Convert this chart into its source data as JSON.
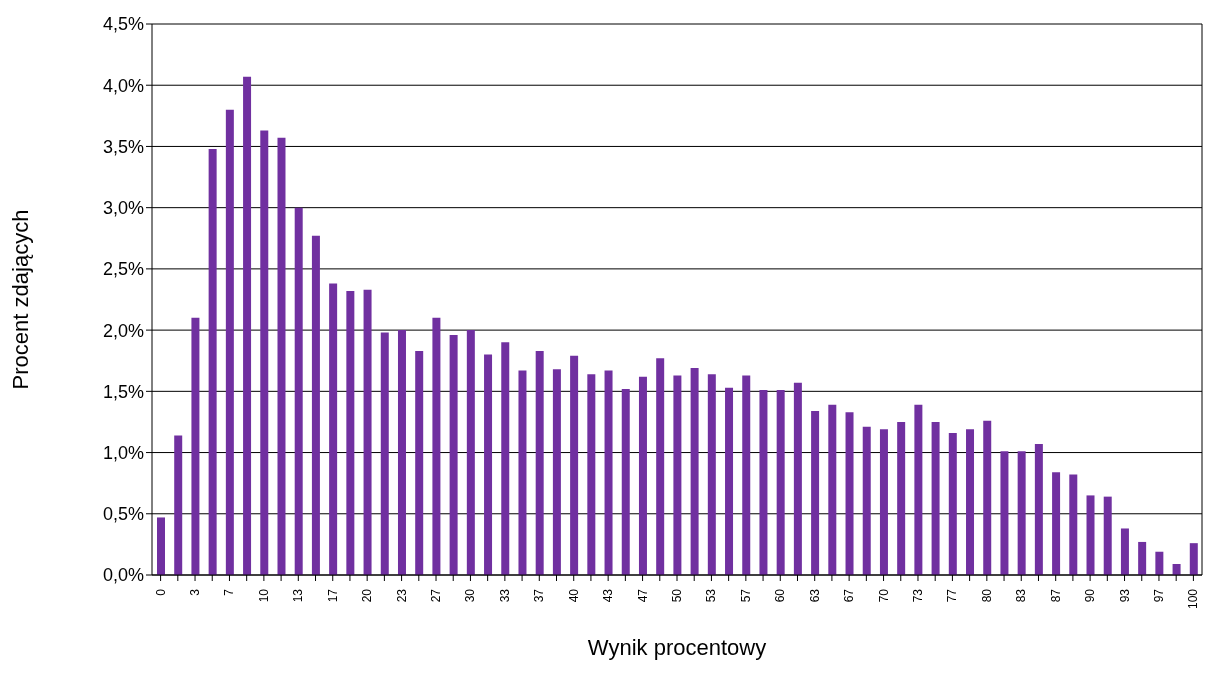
{
  "chart_data": {
    "type": "bar",
    "xlabel": "Wynik procentowy",
    "ylabel": "Procent zdających",
    "categories": [
      "0",
      null,
      "3",
      null,
      "7",
      null,
      "10",
      null,
      "13",
      null,
      "17",
      null,
      "20",
      null,
      "23",
      null,
      "27",
      null,
      "30",
      null,
      "33",
      null,
      "37",
      null,
      "40",
      null,
      "43",
      null,
      "47",
      null,
      "50",
      null,
      "53",
      null,
      "57",
      null,
      "60",
      null,
      "63",
      null,
      "67",
      null,
      "70",
      null,
      "73",
      null,
      "77",
      null,
      "80",
      null,
      "83",
      null,
      "87",
      null,
      "90",
      null,
      "93",
      null,
      "97",
      null,
      "100"
    ],
    "values": [
      0.47,
      1.14,
      2.1,
      3.48,
      3.8,
      4.07,
      3.63,
      3.57,
      3.0,
      2.77,
      2.38,
      2.32,
      2.33,
      1.98,
      2.0,
      1.83,
      2.1,
      1.96,
      2.0,
      1.8,
      1.9,
      1.67,
      1.83,
      1.68,
      1.79,
      1.64,
      1.67,
      1.52,
      1.62,
      1.77,
      1.63,
      1.69,
      1.64,
      1.53,
      1.63,
      1.51,
      1.51,
      1.57,
      1.34,
      1.39,
      1.33,
      1.21,
      1.19,
      1.25,
      1.39,
      1.25,
      1.16,
      1.19,
      1.26,
      1.01,
      1.01,
      1.07,
      0.84,
      0.82,
      0.65,
      0.64,
      0.38,
      0.27,
      0.19,
      0.09,
      0.26
    ],
    "color": "#7030a0",
    "ylim": [
      0,
      4.5
    ],
    "yticks": [
      {
        "value": 0,
        "label": "0,0%"
      },
      {
        "value": 0.5,
        "label": "0,5%"
      },
      {
        "value": 1,
        "label": "1,0%"
      },
      {
        "value": 1.5,
        "label": "1,5%"
      },
      {
        "value": 2,
        "label": "2,0%"
      },
      {
        "value": 2.5,
        "label": "2,5%"
      },
      {
        "value": 3,
        "label": "3,0%"
      },
      {
        "value": 3.5,
        "label": "3,5%"
      },
      {
        "value": 4,
        "label": "4,0%"
      },
      {
        "value": 4.5,
        "label": "4,5%"
      }
    ],
    "grid": "y"
  }
}
